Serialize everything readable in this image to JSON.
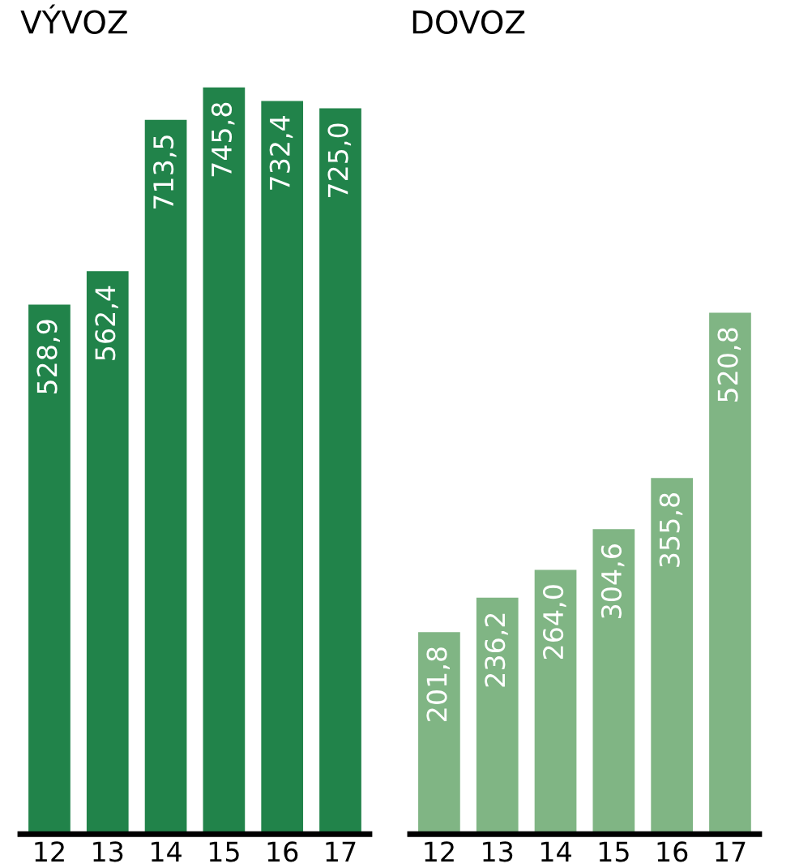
{
  "chart_data": [
    {
      "type": "bar",
      "title": "VÝVOZ",
      "categories": [
        "12",
        "13",
        "14",
        "15",
        "16",
        "17"
      ],
      "values": [
        528.9,
        562.4,
        713.5,
        745.8,
        732.4,
        725.0
      ],
      "value_labels": [
        "528,9",
        "562,4",
        "713,5",
        "745,8",
        "732,4",
        "725,0"
      ],
      "color": "#21834a",
      "tick_labels": "x",
      "grid": false,
      "legend": false
    },
    {
      "type": "bar",
      "title": "DOVOZ",
      "categories": [
        "12",
        "13",
        "14",
        "15",
        "16",
        "17"
      ],
      "values": [
        201.8,
        236.2,
        264.0,
        304.6,
        355.8,
        520.8
      ],
      "value_labels": [
        "201,8",
        "236,2",
        "264,0",
        "304,6",
        "355,8",
        "520,8"
      ],
      "color": "#80b584",
      "tick_labels": "x",
      "grid": false,
      "legend": false
    }
  ]
}
